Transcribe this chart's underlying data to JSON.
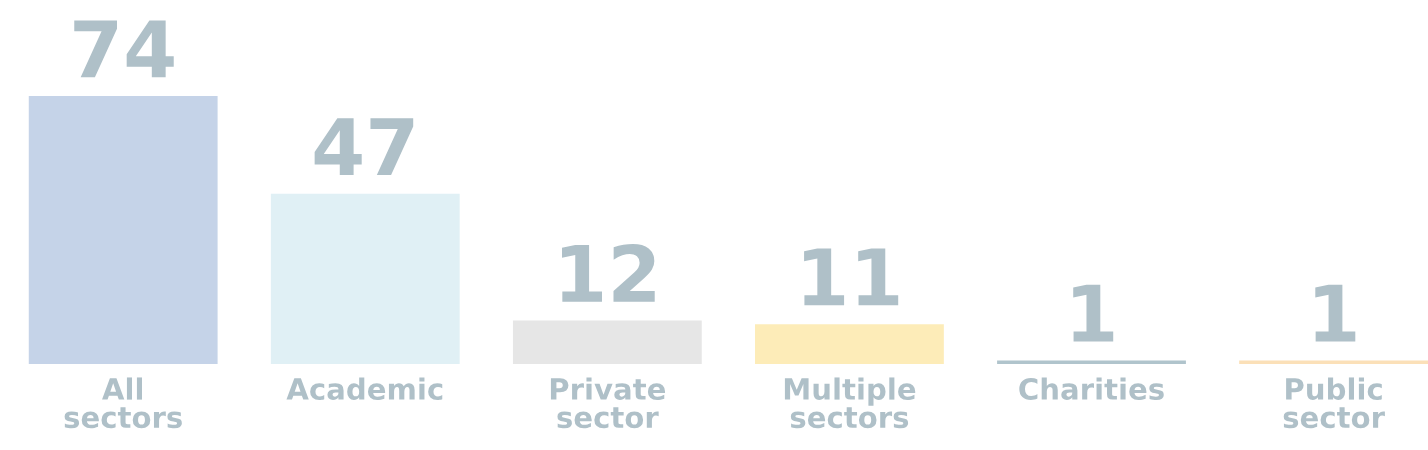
{
  "chart_data": {
    "type": "bar",
    "categories": [
      "All sectors",
      "Academic",
      "Private sector",
      "Multiple sectors",
      "Charities",
      "Public sector"
    ],
    "values": [
      74,
      47,
      12,
      11,
      1,
      1
    ],
    "colors": [
      "#c5d3e8",
      "#e0f0f5",
      "#e6e6e6",
      "#fdecb8",
      "#b0c4cc",
      "#fbe0b8"
    ],
    "data_labels": true
  }
}
